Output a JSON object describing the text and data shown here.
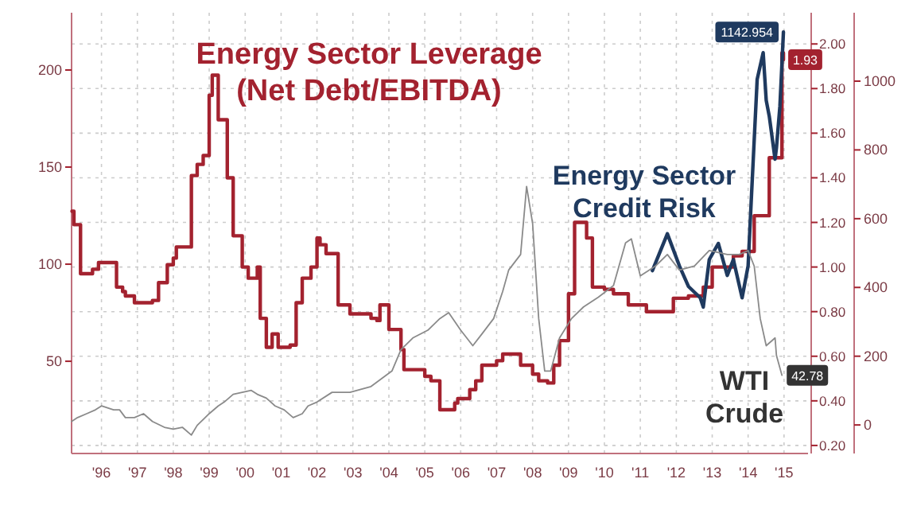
{
  "chart_data": {
    "type": "line",
    "xlim": [
      "1995-09",
      "2016-03"
    ],
    "xticks": [
      {
        "value": "1996-07",
        "label": "'96"
      },
      {
        "value": "1997-07",
        "label": "'97"
      },
      {
        "value": "1998-07",
        "label": "'98"
      },
      {
        "value": "1999-07",
        "label": "'99"
      },
      {
        "value": "2000-07",
        "label": "'00"
      },
      {
        "value": "2001-07",
        "label": "'01"
      },
      {
        "value": "2002-07",
        "label": "'02"
      },
      {
        "value": "2003-07",
        "label": "'03"
      },
      {
        "value": "2004-07",
        "label": "'04"
      },
      {
        "value": "2005-07",
        "label": "'05"
      },
      {
        "value": "2006-07",
        "label": "'06"
      },
      {
        "value": "2007-07",
        "label": "'07"
      },
      {
        "value": "2008-07",
        "label": "'08"
      },
      {
        "value": "2009-07",
        "label": "'09"
      },
      {
        "value": "2010-07",
        "label": "'10"
      },
      {
        "value": "2011-07",
        "label": "'11"
      },
      {
        "value": "2012-07",
        "label": "'12"
      },
      {
        "value": "2013-07",
        "label": "'13"
      },
      {
        "value": "2014-07",
        "label": "'14"
      },
      {
        "value": "2015-07",
        "label": "'15"
      }
    ],
    "ylim": [
      2.5,
      229.5
    ],
    "yticks": [
      50,
      100,
      150,
      200
    ],
    "y2lim": [
      0.164,
      2.14
    ],
    "y2ticks": [
      {
        "value": 0.2,
        "label": "0.20"
      },
      {
        "value": 0.4,
        "label": "0.40"
      },
      {
        "value": 0.6,
        "label": "0.60"
      },
      {
        "value": 0.8,
        "label": "0.80"
      },
      {
        "value": 1.0,
        "label": "1.00"
      },
      {
        "value": 1.2,
        "label": "1.20"
      },
      {
        "value": 1.4,
        "label": "1.40"
      },
      {
        "value": 1.6,
        "label": "1.60"
      },
      {
        "value": 1.8,
        "label": "1.80"
      },
      {
        "value": 2.0,
        "label": "2.00"
      }
    ],
    "y3lim": [
      -83,
      1199
    ],
    "y3ticks": [
      0,
      200,
      400,
      600,
      800,
      1000
    ],
    "grid": true,
    "series": [
      {
        "name": "Energy Sector Leverage (Net Debt/EBITDA)",
        "type": "step",
        "axis": "y2",
        "color": "#a3222f",
        "x": [
          "1995-09-05",
          "1995-09-25",
          "1995-12",
          "1996-04",
          "1996-06",
          "1996-12",
          "1997-02",
          "1997-03",
          "1997-06",
          "1997-12",
          "1998-02",
          "1998-05",
          "1998-07",
          "1998-08",
          "1999-01",
          "1999-03",
          "1999-05",
          "1999-07",
          "1999-08",
          "1999-10",
          "2000-01",
          "2000-03",
          "2000-06",
          "2000-08",
          "2000-11",
          "2000-12",
          "2001-02",
          "2001-04",
          "2001-06",
          "2001-10",
          "2001-12",
          "2002-02",
          "2002-05",
          "2002-07",
          "2002-08",
          "2002-10",
          "2003-02",
          "2003-06",
          "2004-01",
          "2004-03",
          "2004-04",
          "2004-07",
          "2004-11",
          "2004-12",
          "2005-07",
          "2005-09",
          "2005-12",
          "2006-05",
          "2006-06",
          "2006-10",
          "2006-12",
          "2007-02",
          "2007-07",
          "2007-09",
          "2008-03",
          "2008-07",
          "2008-09",
          "2008-12",
          "2009-02",
          "2009-04",
          "2009-07",
          "2009-09",
          "2010-01",
          "2010-03",
          "2010-07",
          "2010-10",
          "2011-03",
          "2011-09",
          "2012-06",
          "2012-11",
          "2013-04",
          "2013-07",
          "2014-02",
          "2014-05",
          "2014-09",
          "2015-02",
          "2015-06-10",
          "2015-06-25"
        ],
        "values": [
          1.25,
          1.19,
          0.97,
          0.99,
          1.02,
          0.91,
          0.89,
          0.87,
          0.84,
          0.85,
          0.93,
          1.01,
          1.04,
          1.09,
          1.41,
          1.46,
          1.5,
          1.77,
          1.86,
          1.66,
          1.4,
          1.14,
          1.0,
          0.95,
          1.0,
          0.77,
          0.64,
          0.7,
          0.64,
          0.65,
          0.84,
          0.95,
          1.0,
          1.13,
          1.1,
          1.06,
          0.83,
          0.79,
          0.77,
          0.76,
          0.83,
          0.72,
          0.63,
          0.54,
          0.51,
          0.49,
          0.36,
          0.39,
          0.41,
          0.45,
          0.49,
          0.56,
          0.58,
          0.61,
          0.56,
          0.52,
          0.49,
          0.48,
          0.56,
          0.67,
          0.88,
          1.2,
          1.13,
          0.91,
          0.9,
          0.88,
          0.83,
          0.8,
          0.86,
          0.87,
          0.91,
          1.0,
          1.05,
          1.07,
          1.23,
          1.49,
          1.96,
          1.93
        ],
        "value_labels": [
          null,
          null,
          null,
          null,
          null,
          null,
          null,
          null,
          null,
          null,
          null,
          null,
          null,
          null,
          null,
          null,
          null,
          null,
          null,
          null,
          null,
          null,
          null,
          null,
          null,
          null,
          null,
          null,
          null,
          null,
          null,
          null,
          null,
          null,
          null,
          null,
          null,
          null,
          null,
          null,
          null,
          null,
          null,
          null,
          null,
          null,
          null,
          null,
          null,
          null,
          null,
          null,
          null,
          null,
          null,
          null,
          null,
          null,
          null,
          null,
          null,
          null,
          null,
          null,
          null,
          null,
          null,
          null,
          null,
          null,
          null,
          null,
          null,
          null,
          null,
          null,
          null,
          "1.93"
        ]
      },
      {
        "name": "Energy Sector Credit Risk",
        "axis": "y3",
        "color": "#1f3a5f",
        "x": [
          "2011-11",
          "2012-04",
          "2012-08",
          "2012-11",
          "2013-03",
          "2013-04",
          "2013-06",
          "2013-09",
          "2013-12",
          "2014-02",
          "2014-05",
          "2014-07",
          "2014-08",
          "2014-10",
          "2014-12",
          "2015-01",
          "2015-02",
          "2015-04-01",
          "2015-04-15",
          "2015-05-20",
          "2015-06-10",
          "2015-06-25"
        ],
        "values": [
          449,
          556,
          463,
          403,
          370,
          343,
          481,
          528,
          435,
          481,
          370,
          463,
          648,
          1005,
          1083,
          944,
          898,
          773,
          806,
          926,
          1051,
          1142.954
        ],
        "value_labels": [
          null,
          null,
          null,
          null,
          null,
          null,
          null,
          null,
          null,
          null,
          null,
          null,
          null,
          null,
          null,
          null,
          null,
          null,
          null,
          null,
          null,
          "1142.954"
        ]
      },
      {
        "name": "WTI Crude",
        "color": "#8a8a8a",
        "x": [
          "1995-09",
          "1995-11",
          "1996-02",
          "1996-05",
          "1996-07",
          "1996-11",
          "1997-01",
          "1997-03",
          "1997-06",
          "1997-09",
          "1997-12",
          "1998-04",
          "1998-07",
          "1998-10",
          "1999-01",
          "1999-03",
          "1999-07",
          "1999-10",
          "1999-12",
          "2000-03",
          "2000-06",
          "2000-09",
          "2000-11",
          "2001-02",
          "2001-05",
          "2001-08",
          "2001-11",
          "2002-02",
          "2002-04",
          "2002-07",
          "2002-12",
          "2003-06",
          "2004-01",
          "2004-08",
          "2004-11",
          "2005-03",
          "2005-08",
          "2005-12",
          "2006-03",
          "2006-07",
          "2006-11",
          "2007-02",
          "2007-06",
          "2007-09",
          "2007-11",
          "2008-03",
          "2008-05",
          "2008-07",
          "2008-09",
          "2008-11",
          "2009-01",
          "2009-04",
          "2009-08",
          "2009-12",
          "2010-05",
          "2010-10",
          "2011-02",
          "2011-04",
          "2011-07",
          "2011-12",
          "2012-04",
          "2012-08",
          "2013-01",
          "2013-06",
          "2013-12",
          "2014-04",
          "2014-07",
          "2014-09",
          "2014-11",
          "2015-01",
          "2015-04-01",
          "2015-04-15",
          "2015-06-10"
        ],
        "values": [
          19,
          21,
          23,
          25,
          27,
          25,
          25,
          21,
          21,
          23,
          19,
          16,
          15,
          16,
          12,
          17,
          23,
          27,
          29,
          33,
          34,
          35,
          33,
          31,
          27,
          25,
          21,
          23,
          27,
          29,
          34,
          34,
          37,
          45,
          56,
          62,
          66,
          72,
          75,
          66,
          58,
          64,
          72,
          86,
          97,
          105,
          140,
          121,
          72,
          45,
          45,
          62,
          72,
          78,
          83,
          89,
          111,
          113,
          94,
          99,
          105,
          97,
          99,
          107,
          105,
          105,
          107,
          99,
          72,
          58,
          62,
          53,
          42.78
        ],
        "value_labels": [
          null,
          null,
          null,
          null,
          null,
          null,
          null,
          null,
          null,
          null,
          null,
          null,
          null,
          null,
          null,
          null,
          null,
          null,
          null,
          null,
          null,
          null,
          null,
          null,
          null,
          null,
          null,
          null,
          null,
          null,
          null,
          null,
          null,
          null,
          null,
          null,
          null,
          null,
          null,
          null,
          null,
          null,
          null,
          null,
          null,
          null,
          null,
          null,
          null,
          null,
          null,
          null,
          null,
          null,
          null,
          null,
          null,
          null,
          null,
          null,
          null,
          null,
          null,
          null,
          null,
          null,
          null,
          null,
          null,
          null,
          null,
          null,
          "42.78"
        ]
      }
    ]
  }
}
